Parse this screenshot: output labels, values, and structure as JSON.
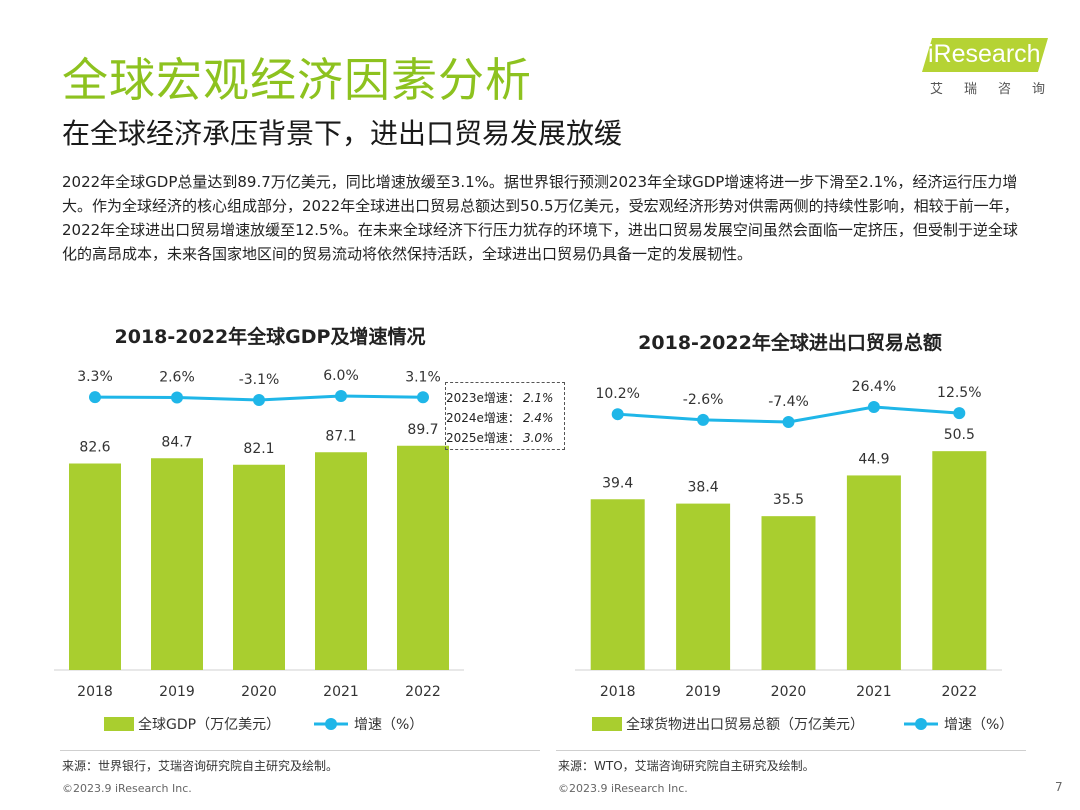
{
  "header": {
    "title": "全球宏观经济因素分析",
    "subtitle": "在全球经济承压背景下，进出口贸易发展放缓",
    "logo_text": "iResearch",
    "logo_cn": "艾瑞咨询"
  },
  "paragraph": "2022年全球GDP总量达到89.7万亿美元，同比增速放缓至3.1%。据世界银行预测2023年全球GDP增速将进一步下滑至2.1%，经济运行压力增大。作为全球经济的核心组成部分，2022年全球进出口贸易总额达到50.5万亿美元，受宏观经济形势对供需两侧的持续性影响，相较于前一年，2022年全球进出口贸易增速放缓至12.5%。在未来全球经济下行压力犹存的环境下，进出口贸易发展空间虽然会面临一定挤压，但受制于逆全球化的高昂成本，未来各国家地区间的贸易流动将依然保持活跃，全球进出口贸易仍具备一定的发展韧性。",
  "forecast": [
    {
      "label": "2023e增速：",
      "value": "2.1%"
    },
    {
      "label": "2024e增速：",
      "value": "2.4%"
    },
    {
      "label": "2025e增速：",
      "value": "3.0%"
    }
  ],
  "footer": {
    "source_left": "来源：世界银行，艾瑞咨询研究院自主研究及绘制。",
    "source_right": "来源：WTO，艾瑞咨询研究院自主研究及绘制。",
    "copyright_left": "©2023.9 iResearch Inc.",
    "copyright_right": "©2023.9 iResearch Inc.",
    "page": "7"
  },
  "colors": {
    "bar": "#a9ce2f",
    "line": "#1fb6e8",
    "title": "#8dc21f"
  },
  "chart_data": [
    {
      "type": "bar",
      "title": "2018-2022年全球GDP及增速情况",
      "categories": [
        "2018",
        "2019",
        "2020",
        "2021",
        "2022"
      ],
      "series": [
        {
          "name": "全球GDP（万亿美元）",
          "type": "bar",
          "values": [
            82.6,
            84.7,
            82.1,
            87.1,
            89.7
          ],
          "labels": [
            "82.6",
            "84.7",
            "82.1",
            "87.1",
            "89.7"
          ]
        },
        {
          "name": "增速（%）",
          "type": "line",
          "values": [
            3.3,
            2.6,
            -3.1,
            6.0,
            3.1
          ],
          "labels": [
            "3.3%",
            "2.6%",
            "-3.1%",
            "6.0%",
            "3.1%"
          ]
        }
      ],
      "ylim": [
        0,
        100
      ],
      "grid": false,
      "legend": "bottom"
    },
    {
      "type": "bar",
      "title": "2018-2022年全球进出口贸易总额",
      "categories": [
        "2018",
        "2019",
        "2020",
        "2021",
        "2022"
      ],
      "series": [
        {
          "name": "全球货物进出口贸易总额（万亿美元）",
          "type": "bar",
          "values": [
            39.4,
            38.4,
            35.5,
            44.9,
            50.5
          ],
          "labels": [
            "39.4",
            "38.4",
            "35.5",
            "44.9",
            "50.5"
          ]
        },
        {
          "name": "增速（%）",
          "type": "line",
          "values": [
            10.2,
            -2.6,
            -7.4,
            26.4,
            12.5
          ],
          "labels": [
            "10.2%",
            "-2.6%",
            "-7.4%",
            "26.4%",
            "12.5%"
          ]
        }
      ],
      "ylim": [
        0,
        60
      ],
      "grid": false,
      "legend": "bottom"
    }
  ]
}
